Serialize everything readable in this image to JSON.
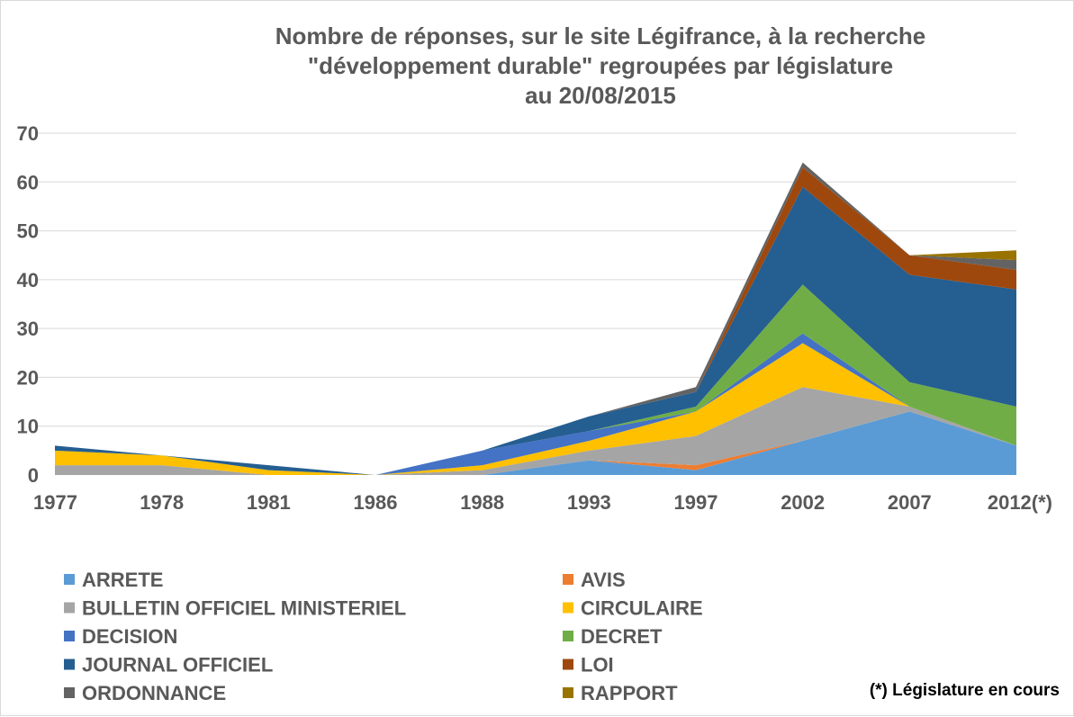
{
  "chart_data": {
    "type": "area",
    "stacked": true,
    "title_lines": [
      "Nombre de réponses, sur le site Légifrance, à la recherche",
      "\"développement durable\" regroupées par législature",
      "au 20/08/2015"
    ],
    "categories": [
      "1977",
      "1978",
      "1981",
      "1986",
      "1988",
      "1993",
      "1997",
      "2002",
      "2007",
      "2012(*)"
    ],
    "ylim": [
      0,
      70
    ],
    "yticks": [
      0,
      10,
      20,
      30,
      40,
      50,
      60,
      70
    ],
    "grid": true,
    "legend_position": "bottom",
    "series": [
      {
        "name": "ARRETE",
        "color": "#5b9bd5",
        "values": [
          0,
          0,
          0,
          0,
          0,
          3,
          1,
          7,
          13,
          6
        ]
      },
      {
        "name": "AVIS",
        "color": "#ed7d31",
        "values": [
          0,
          0,
          0,
          0,
          0,
          0,
          1,
          0,
          0,
          0
        ]
      },
      {
        "name": "BULLETIN OFFICIEL MINISTERIEL",
        "color": "#a5a5a5",
        "values": [
          2,
          2,
          0,
          0,
          1,
          2,
          6,
          11,
          1,
          0
        ]
      },
      {
        "name": "CIRCULAIRE",
        "color": "#ffc000",
        "values": [
          3,
          2,
          1,
          0,
          1,
          2,
          5,
          9,
          0,
          0
        ]
      },
      {
        "name": "DECISION",
        "color": "#4472c4",
        "values": [
          0,
          0,
          0,
          0,
          3,
          2,
          0,
          2,
          0,
          0
        ]
      },
      {
        "name": "DECRET",
        "color": "#70ad47",
        "values": [
          0,
          0,
          0,
          0,
          0,
          0,
          1,
          10,
          5,
          8
        ]
      },
      {
        "name": "JOURNAL OFFICIEL",
        "color": "#255e91",
        "values": [
          1,
          0,
          1,
          0,
          0,
          3,
          3,
          20,
          22,
          24
        ]
      },
      {
        "name": "LOI",
        "color": "#9e480e",
        "values": [
          0,
          0,
          0,
          0,
          0,
          0,
          0,
          4,
          4,
          4
        ]
      },
      {
        "name": "ORDONNANCE",
        "color": "#636363",
        "values": [
          0,
          0,
          0,
          0,
          0,
          0,
          1,
          1,
          0,
          2
        ]
      },
      {
        "name": "RAPPORT",
        "color": "#997300",
        "values": [
          0,
          0,
          0,
          0,
          0,
          0,
          0,
          0,
          0,
          2
        ]
      }
    ]
  },
  "footnote": "(*) Législature en cours"
}
